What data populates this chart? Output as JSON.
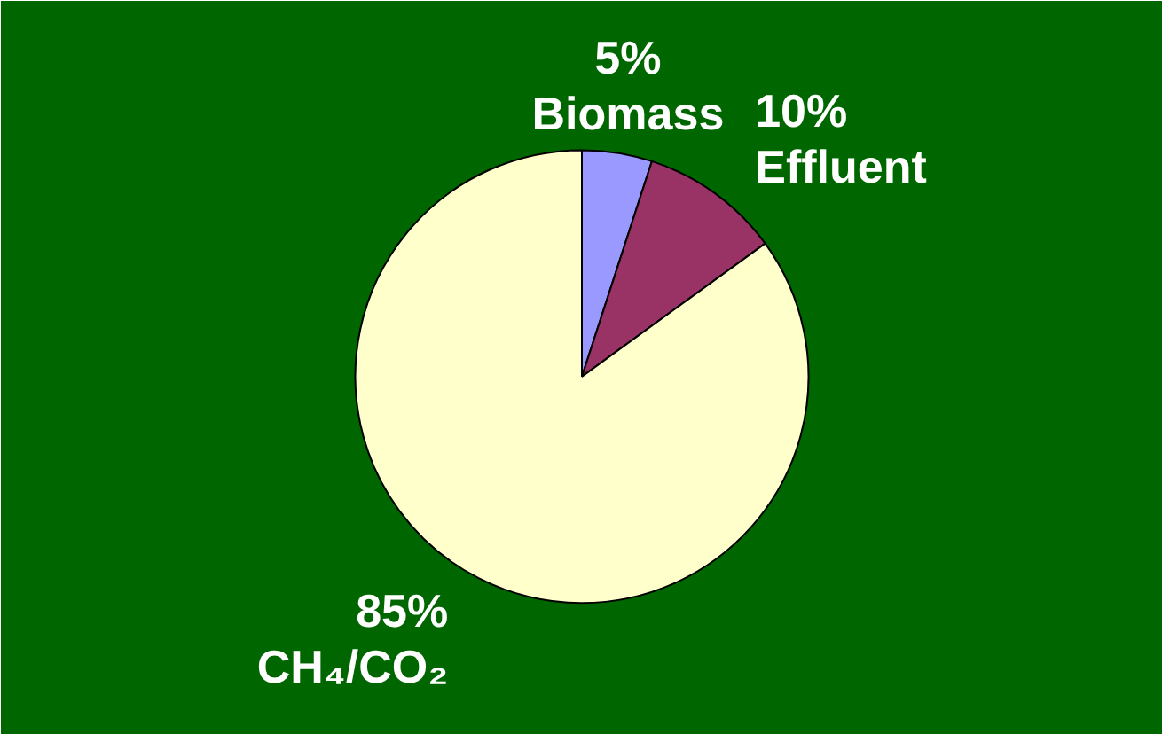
{
  "chart_data": {
    "type": "pie",
    "categories": [
      "Biomass",
      "Effluent",
      "CH₄/CO₂"
    ],
    "values": [
      5,
      10,
      85
    ],
    "colors": [
      "#9999ff",
      "#993366",
      "#ffffcc"
    ],
    "value_labels": [
      "5%",
      "10%",
      "85%"
    ]
  }
}
